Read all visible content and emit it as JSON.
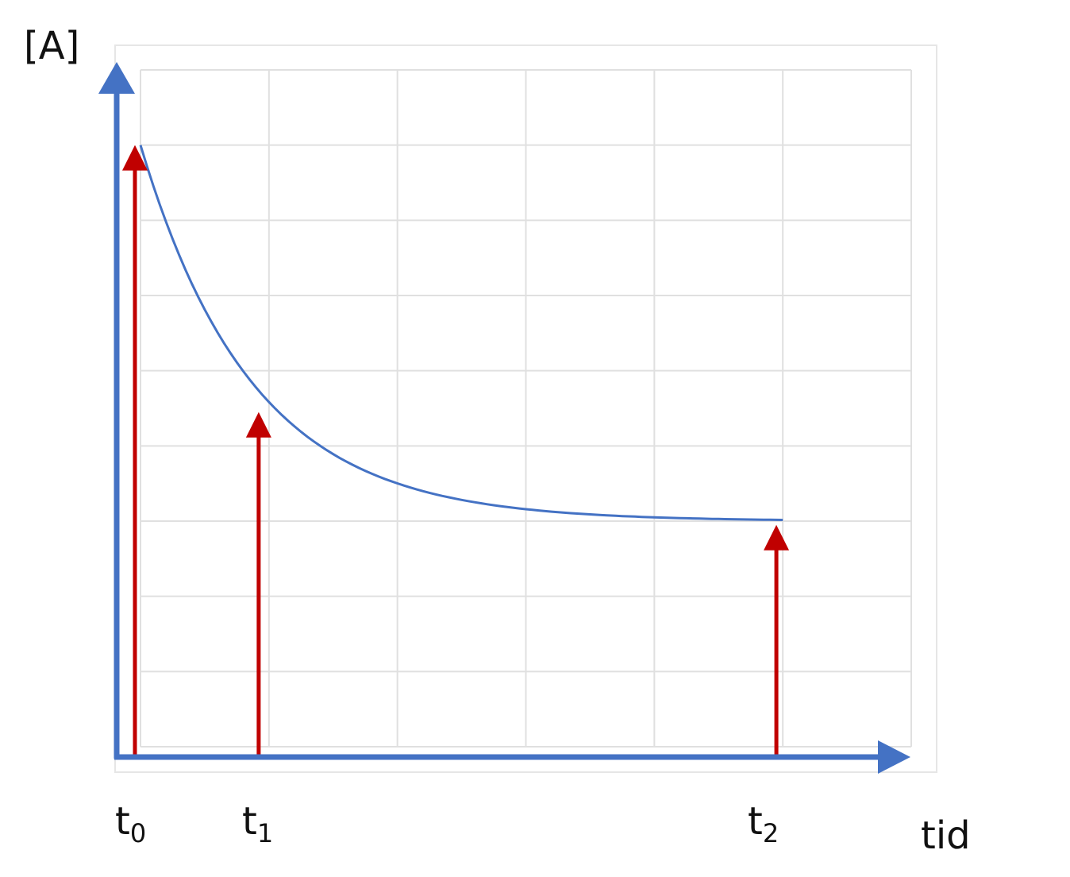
{
  "chart_data": {
    "type": "line",
    "ylabel": "[A]",
    "xlabel": "tid",
    "grid": true,
    "xlim": [
      0,
      6
    ],
    "ylim": [
      0,
      9
    ],
    "series": [
      {
        "x": [
          0,
          0.5,
          1,
          1.5,
          2,
          2.5,
          3,
          3.5,
          4,
          4.5,
          5
        ],
        "y": [
          8.0,
          5.81,
          4.58,
          3.89,
          3.5,
          3.28,
          3.16,
          3.09,
          3.05,
          3.03,
          3.02
        ]
      }
    ],
    "annotations": [
      {
        "label": "t",
        "sub": "0",
        "x": 0,
        "arrow_to": 8.0
      },
      {
        "label": "t",
        "sub": "1",
        "x": 0.92,
        "arrow_to": 4.45
      },
      {
        "label": "t",
        "sub": "2",
        "x": 4.95,
        "arrow_to": 2.95
      }
    ],
    "colors": {
      "axis": "#4472c4",
      "curve": "#4472c4",
      "arrows": "#c00000",
      "grid": "#e0e0e0"
    }
  }
}
